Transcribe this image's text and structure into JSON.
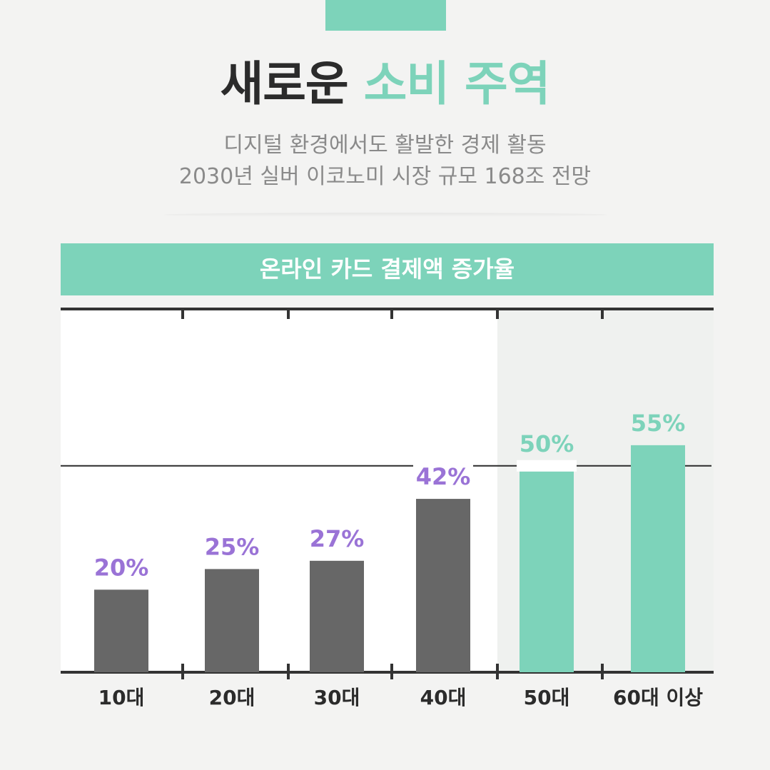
{
  "header": {
    "title_part1": "새로운",
    "title_part2": "소비 주역",
    "subtitle_line1": "디지털 환경에서도 활발한 경제 활동",
    "subtitle_line2": "2030년 실버 이코노미 시장 규모 168조 전망"
  },
  "colors": {
    "accent": "#7dd3ba",
    "gray_bar": "#676767",
    "label_purple": "#9a73d6",
    "dark_text": "#2b2b2b"
  },
  "chart_data": {
    "type": "bar",
    "title": "온라인 카드 결제액 증가율",
    "categories": [
      "10대",
      "20대",
      "30대",
      "40대",
      "50대",
      "60대 이상"
    ],
    "values": [
      20,
      25,
      27,
      42,
      50,
      55
    ],
    "value_labels": [
      "20%",
      "25%",
      "27%",
      "42%",
      "50%",
      "55%"
    ],
    "highlight": [
      false,
      false,
      false,
      false,
      true,
      true
    ],
    "ylim": [
      0,
      88
    ],
    "reference_line": 50,
    "xlabel": "",
    "ylabel": ""
  }
}
